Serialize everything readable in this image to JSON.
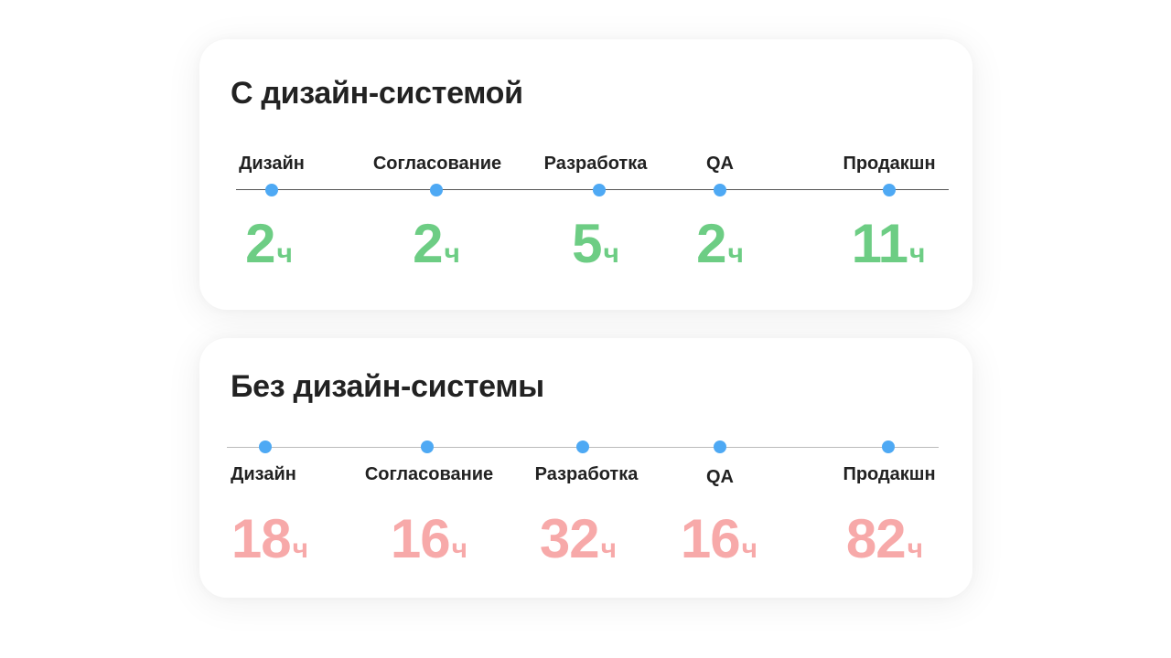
{
  "with_design_system": {
    "title": "С дизайн-системой",
    "stages": [
      {
        "label": "Дизайн",
        "value": "2",
        "unit": "ч"
      },
      {
        "label": "Согласование",
        "value": "2",
        "unit": "ч"
      },
      {
        "label": "Разработка",
        "value": "5",
        "unit": "ч"
      },
      {
        "label": "QA",
        "value": "2",
        "unit": "ч"
      },
      {
        "label": "Продакшн",
        "value": "11",
        "unit": "ч"
      }
    ]
  },
  "without_design_system": {
    "title": "Без дизайн-системы",
    "stages": [
      {
        "label": "Дизайн",
        "value": "18",
        "unit": "ч"
      },
      {
        "label": "Согласование",
        "value": "16",
        "unit": "ч"
      },
      {
        "label": "Разработка",
        "value": "32",
        "unit": "ч"
      },
      {
        "label": "QA",
        "value": "16",
        "unit": "ч"
      },
      {
        "label": "Продакшн",
        "value": "82",
        "unit": "ч"
      }
    ]
  },
  "colors": {
    "dot": "#4ea9f4",
    "value_with": "#6dcd84",
    "value_without": "#f7a9a9"
  }
}
